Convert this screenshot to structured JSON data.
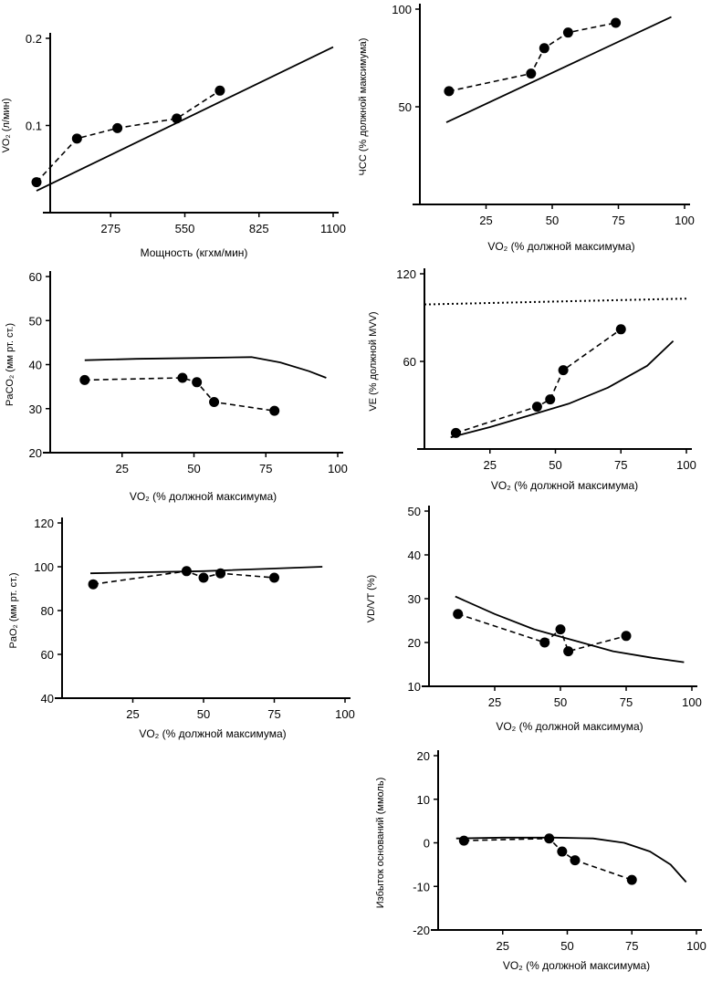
{
  "chart_data": [
    {
      "id": "vo2_power",
      "type": "scatter",
      "xlabel": "Мощность (кгхм/мин)",
      "ylabel": "VO₂ (л/мин)",
      "xlim": [
        0,
        1100
      ],
      "ylim": [
        0,
        0.2
      ],
      "xticks": [
        275,
        550,
        825,
        1100
      ],
      "yticks": [
        0.1,
        0.2
      ],
      "xtick_labels": [
        "275",
        "550",
        "825",
        "1100"
      ],
      "ytick_labels": [
        "0.1",
        "0.2"
      ],
      "series": [
        {
          "style": "dashed-markers",
          "x": [
            0,
            150,
            300,
            520,
            680
          ],
          "y": [
            0.035,
            0.085,
            0.097,
            0.108,
            0.14
          ]
        },
        {
          "style": "solid",
          "x": [
            0,
            1100
          ],
          "y": [
            0.025,
            0.19
          ]
        }
      ]
    },
    {
      "id": "hr",
      "type": "scatter",
      "xlabel": "VO₂  (% должной максимума)",
      "ylabel": "ЧСС (% должной максимума)",
      "xlim": [
        0,
        100
      ],
      "ylim": [
        0,
        100
      ],
      "xticks": [
        25,
        50,
        75,
        100
      ],
      "yticks": [
        50,
        100
      ],
      "xtick_labels": [
        "25",
        "50",
        "75",
        "100"
      ],
      "ytick_labels": [
        "50",
        "100"
      ],
      "series": [
        {
          "style": "dashed-markers",
          "x": [
            11,
            42,
            47,
            56,
            74
          ],
          "y": [
            58,
            67,
            80,
            88,
            93
          ]
        },
        {
          "style": "solid",
          "x": [
            10,
            95
          ],
          "y": [
            42,
            96
          ]
        }
      ]
    },
    {
      "id": "paco2",
      "type": "scatter",
      "xlabel": "VO₂  (% должной максимума)",
      "ylabel": "PaCO₂  (мм рт. ст.)",
      "xlim": [
        0,
        100
      ],
      "ylim": [
        20,
        60
      ],
      "xticks": [
        25,
        50,
        75,
        100
      ],
      "yticks": [
        20,
        30,
        40,
        50,
        60
      ],
      "xtick_labels": [
        "25",
        "50",
        "75",
        "100"
      ],
      "ytick_labels": [
        "20",
        "30",
        "40",
        "50",
        "60"
      ],
      "series": [
        {
          "style": "dashed-markers",
          "x": [
            12,
            46,
            51,
            57,
            78
          ],
          "y": [
            36.5,
            37,
            36,
            31.5,
            29.5
          ]
        },
        {
          "style": "solid",
          "x": [
            12,
            30,
            50,
            70,
            80,
            90,
            96
          ],
          "y": [
            41,
            41.3,
            41.5,
            41.7,
            40.5,
            38.5,
            37
          ]
        }
      ]
    },
    {
      "id": "ve",
      "type": "scatter",
      "xlabel": "VO₂  (% должной максимума)",
      "ylabel": "VE  (% должной MVV)",
      "xlim": [
        0,
        100
      ],
      "ylim": [
        0,
        120
      ],
      "xticks": [
        25,
        50,
        75,
        100
      ],
      "yticks": [
        60,
        120
      ],
      "xtick_labels": [
        "25",
        "50",
        "75",
        "100"
      ],
      "ytick_labels": [
        "60",
        "120"
      ],
      "series": [
        {
          "style": "dashed-markers",
          "x": [
            12,
            43,
            48,
            53,
            75
          ],
          "y": [
            11,
            29,
            34,
            54,
            82
          ]
        },
        {
          "style": "dotted",
          "x": [
            0,
            100
          ],
          "y": [
            99,
            103
          ]
        },
        {
          "style": "solid",
          "x": [
            10,
            25,
            40,
            55,
            70,
            85,
            95
          ],
          "y": [
            8,
            15,
            23,
            31,
            42,
            57,
            74
          ]
        }
      ]
    },
    {
      "id": "pao2",
      "type": "scatter",
      "xlabel": "VO₂  (% должной максимума)",
      "ylabel": "PaO₂  (мм рт. ст.)",
      "xlim": [
        0,
        100
      ],
      "ylim": [
        40,
        120
      ],
      "xticks": [
        25,
        50,
        75,
        100
      ],
      "yticks": [
        40,
        60,
        80,
        100,
        120
      ],
      "xtick_labels": [
        "25",
        "50",
        "75",
        "100"
      ],
      "ytick_labels": [
        "40",
        "60",
        "80",
        "100",
        "120"
      ],
      "series": [
        {
          "style": "dashed-markers",
          "x": [
            11,
            44,
            50,
            56,
            75
          ],
          "y": [
            92,
            98,
            95,
            97,
            95
          ]
        },
        {
          "style": "solid",
          "x": [
            10,
            50,
            92
          ],
          "y": [
            97,
            98,
            100
          ]
        }
      ]
    },
    {
      "id": "vdvt",
      "type": "scatter",
      "xlabel": "VO₂  (% должной максимума)",
      "ylabel": "VD/VT (%)",
      "xlim": [
        0,
        100
      ],
      "ylim": [
        10,
        50
      ],
      "xticks": [
        25,
        50,
        75,
        100
      ],
      "yticks": [
        10,
        20,
        30,
        40,
        50
      ],
      "xtick_labels": [
        "25",
        "50",
        "75",
        "100"
      ],
      "ytick_labels": [
        "10",
        "20",
        "30",
        "40",
        "50"
      ],
      "series": [
        {
          "style": "dashed-markers",
          "x": [
            11,
            44,
            50,
            53,
            75
          ],
          "y": [
            26.5,
            20,
            23,
            18,
            21.5
          ]
        },
        {
          "style": "solid",
          "x": [
            10,
            25,
            40,
            55,
            70,
            85,
            97
          ],
          "y": [
            30.5,
            26.5,
            23,
            20.5,
            18,
            16.5,
            15.5
          ]
        }
      ]
    },
    {
      "id": "be",
      "type": "scatter",
      "xlabel": "VO₂  (% должной максимума)",
      "ylabel": "Избыток оснований (ммоль)",
      "xlim": [
        0,
        100
      ],
      "ylim": [
        -20,
        20
      ],
      "xticks": [
        25,
        50,
        75,
        100
      ],
      "yticks": [
        -20,
        -10,
        0,
        10,
        20
      ],
      "xtick_labels": [
        "25",
        "50",
        "75",
        "100"
      ],
      "ytick_labels": [
        "-20",
        "-10",
        "0",
        "10",
        "20"
      ],
      "series": [
        {
          "style": "dashed-markers",
          "x": [
            10,
            43,
            48,
            53,
            75
          ],
          "y": [
            0.5,
            1,
            -2,
            -4,
            -8.5
          ]
        },
        {
          "style": "solid",
          "x": [
            7,
            25,
            45,
            60,
            72,
            82,
            90,
            96
          ],
          "y": [
            1,
            1.2,
            1.2,
            1,
            0,
            -2,
            -5,
            -9
          ]
        }
      ]
    }
  ]
}
